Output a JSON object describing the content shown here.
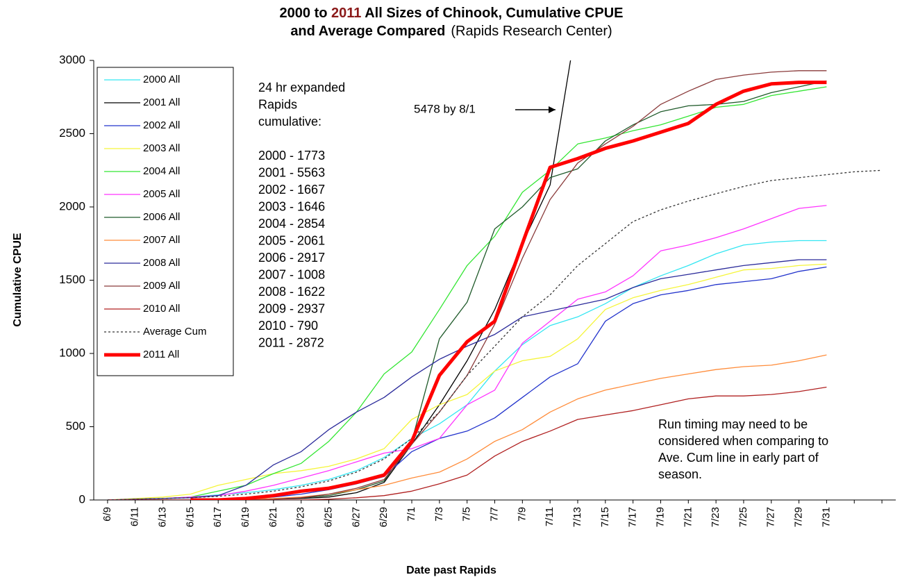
{
  "chart_data": {
    "type": "line",
    "title_parts": [
      "2000 to ",
      "2011",
      " All Sizes of Chinook, Cumulative CPUE"
    ],
    "title_color": "#8b1a1a",
    "subtitle_bold": "and Average Compared",
    "subtitle_normal": "(Rapids Research Center)",
    "x_label": "Date past Rapids",
    "y_label": "Cumulative CPUE",
    "categories": [
      "6/9",
      "6/11",
      "6/13",
      "6/15",
      "6/17",
      "6/19",
      "6/21",
      "6/23",
      "6/25",
      "6/27",
      "6/29",
      "7/1",
      "7/3",
      "7/5",
      "7/7",
      "7/9",
      "7/11",
      "7/13",
      "7/15",
      "7/17",
      "7/19",
      "7/21",
      "7/23",
      "7/25",
      "7/27",
      "7/29",
      "7/31",
      null,
      null
    ],
    "ylim": [
      0,
      3000
    ],
    "yticks": [
      0,
      500,
      1000,
      1500,
      2000,
      2500,
      3000
    ],
    "series": [
      {
        "name": "2000 All",
        "color": "#33e6f2",
        "values": [
          0,
          5,
          10,
          20,
          35,
          50,
          70,
          100,
          140,
          200,
          290,
          420,
          520,
          650,
          880,
          1060,
          1190,
          1250,
          1340,
          1450,
          1530,
          1600,
          1680,
          1740,
          1760,
          1770,
          1770,
          null,
          null
        ]
      },
      {
        "name": "2001 All",
        "color": "#000000",
        "values": [
          0,
          0,
          0,
          0,
          0,
          0,
          5,
          10,
          20,
          50,
          120,
          380,
          650,
          950,
          1300,
          1750,
          2150,
          3300,
          null,
          null,
          null,
          null,
          null,
          null,
          null,
          null,
          null,
          null,
          null
        ]
      },
      {
        "name": "2002 All",
        "color": "#2233cc",
        "values": [
          0,
          0,
          0,
          0,
          5,
          10,
          20,
          40,
          70,
          110,
          160,
          330,
          420,
          470,
          560,
          700,
          840,
          930,
          1220,
          1340,
          1400,
          1430,
          1470,
          1490,
          1510,
          1560,
          1590,
          null,
          null
        ]
      },
      {
        "name": "2003 All",
        "color": "#f5f53a",
        "values": [
          0,
          10,
          20,
          40,
          100,
          140,
          180,
          200,
          230,
          280,
          350,
          550,
          650,
          720,
          880,
          950,
          980,
          1100,
          1300,
          1380,
          1430,
          1470,
          1520,
          1570,
          1580,
          1600,
          1610,
          null,
          null
        ]
      },
      {
        "name": "2004 All",
        "color": "#33e633",
        "values": [
          0,
          5,
          10,
          20,
          60,
          100,
          180,
          250,
          400,
          600,
          860,
          1010,
          1300,
          1600,
          1800,
          2100,
          2250,
          2430,
          2470,
          2520,
          2560,
          2620,
          2680,
          2700,
          2760,
          2790,
          2820,
          null,
          null
        ]
      },
      {
        "name": "2005 All",
        "color": "#ff33ff",
        "values": [
          0,
          5,
          10,
          20,
          30,
          60,
          100,
          150,
          200,
          260,
          320,
          350,
          420,
          650,
          750,
          1070,
          1220,
          1370,
          1420,
          1530,
          1700,
          1740,
          1790,
          1850,
          1920,
          1990,
          2010,
          null,
          null
        ]
      },
      {
        "name": "2006 All",
        "color": "#1f5a2a",
        "values": [
          0,
          0,
          0,
          0,
          0,
          0,
          5,
          15,
          30,
          70,
          130,
          400,
          1100,
          1350,
          1850,
          2000,
          2200,
          2260,
          2450,
          2560,
          2650,
          2690,
          2700,
          2720,
          2780,
          2820,
          2860,
          null,
          null
        ]
      },
      {
        "name": "2007 All",
        "color": "#ff8c3a",
        "values": [
          0,
          0,
          0,
          0,
          0,
          5,
          10,
          20,
          40,
          70,
          100,
          150,
          190,
          280,
          400,
          480,
          600,
          690,
          750,
          790,
          830,
          860,
          890,
          910,
          920,
          950,
          990,
          null,
          null
        ]
      },
      {
        "name": "2008 All",
        "color": "#2a2a9a",
        "values": [
          0,
          5,
          10,
          15,
          30,
          100,
          240,
          330,
          480,
          600,
          700,
          840,
          960,
          1050,
          1130,
          1250,
          1290,
          1330,
          1370,
          1450,
          1510,
          1540,
          1570,
          1600,
          1620,
          1640,
          1640,
          null,
          null
        ]
      },
      {
        "name": "2009 All",
        "color": "#8a3a3a",
        "values": [
          0,
          0,
          0,
          0,
          0,
          0,
          5,
          15,
          40,
          80,
          140,
          380,
          600,
          850,
          1200,
          1650,
          2050,
          2300,
          2430,
          2550,
          2700,
          2790,
          2870,
          2900,
          2920,
          2930,
          2930,
          null,
          null
        ]
      },
      {
        "name": "2010 All",
        "color": "#b02020",
        "values": [
          0,
          0,
          0,
          0,
          0,
          0,
          0,
          0,
          5,
          15,
          30,
          60,
          110,
          170,
          300,
          400,
          470,
          550,
          580,
          610,
          650,
          690,
          710,
          710,
          720,
          740,
          770,
          null,
          null
        ]
      },
      {
        "name": "Average Cum",
        "color": "#333333",
        "dash": "3,3",
        "values": [
          0,
          5,
          10,
          15,
          25,
          40,
          60,
          90,
          130,
          190,
          280,
          420,
          600,
          850,
          1050,
          1250,
          1400,
          1600,
          1750,
          1900,
          1980,
          2040,
          2090,
          2140,
          2180,
          2200,
          2220,
          2240,
          2250
        ]
      },
      {
        "name": "2011 All",
        "color": "#ff0000",
        "width": 5,
        "values": [
          null,
          null,
          null,
          0,
          0,
          10,
          30,
          60,
          80,
          120,
          170,
          400,
          850,
          1080,
          1220,
          1750,
          2270,
          2330,
          2400,
          2450,
          2510,
          2570,
          2700,
          2790,
          2840,
          2850,
          2850,
          null,
          null
        ]
      }
    ],
    "note_heading": [
      "24 hr expanded",
      "Rapids",
      "cumulative:"
    ],
    "note_list": [
      "2000 - 1773",
      "2001 - 5563",
      "2002 - 1667",
      "2003 - 1646",
      "2004 - 2854",
      "2005 - 2061",
      "2006 - 2917",
      "2007 - 1008",
      "2008 - 1622",
      "2009 - 2937",
      "2010 - 790",
      "2011 - 2872"
    ],
    "arrow_label": "5478 by 8/1",
    "run_note": [
      "Run timing may need to be",
      "considered when comparing to",
      "Ave. Cum line in early part of",
      "season."
    ]
  }
}
